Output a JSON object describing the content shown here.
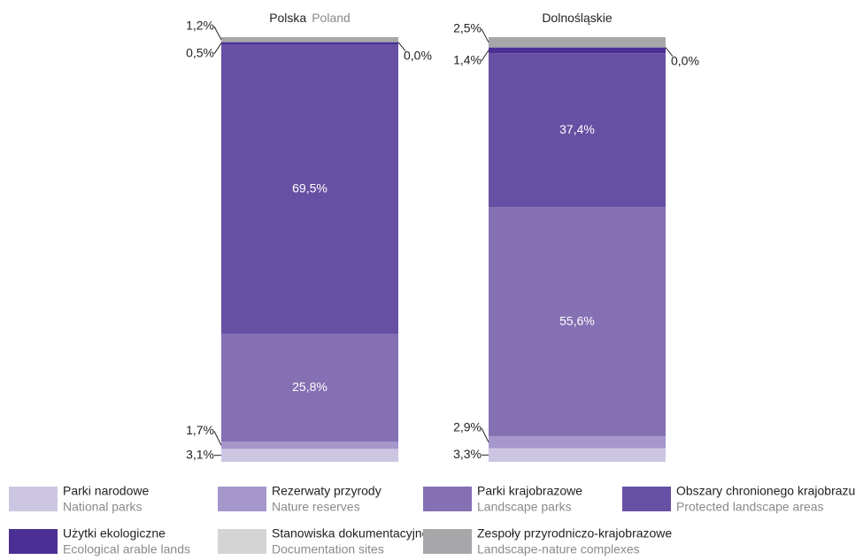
{
  "chart_data": {
    "type": "stacked_bar_100",
    "categories": [
      "Polska",
      "Dolnośląskie"
    ],
    "categories_en": [
      "Poland",
      null
    ],
    "series": [
      {
        "name": "Parki narodowe",
        "name_en": "National parks",
        "color": "#cdc6e3",
        "values": [
          3.1,
          3.3
        ],
        "value_labels": [
          "3,1%",
          "3,3%"
        ]
      },
      {
        "name": "Rezerwaty przyrody",
        "name_en": "Nature reserves",
        "color": "#a596cb",
        "values": [
          1.7,
          2.9
        ],
        "value_labels": [
          "1,7%",
          "2,9%"
        ]
      },
      {
        "name": "Parki krajobrazowe",
        "name_en": "Landscape parks",
        "color": "#8470b3",
        "values": [
          25.8,
          55.6
        ],
        "value_labels": [
          "25,8%",
          "55,6%"
        ]
      },
      {
        "name": "Obszary chronionego krajobrazu",
        "name_en": "Protected landscape areas",
        "color": "#6650a3",
        "values": [
          69.5,
          37.4
        ],
        "value_labels": [
          "69,5%",
          "37,4%"
        ]
      },
      {
        "name": "Użytki ekologiczne",
        "name_en": "Ecological arable lands",
        "color": "#4b2f94",
        "values": [
          0.5,
          1.4
        ],
        "value_labels": [
          "0,5%",
          "1,4%"
        ]
      },
      {
        "name": "Stanowiska dokumentacyjne",
        "name_en": "Documentation sites",
        "color": "#d4d4d4",
        "values": [
          0.0,
          0.0
        ],
        "value_labels": [
          "0,0%",
          "0,0%"
        ]
      },
      {
        "name": "Zespoły przyrodniczo-krajobrazowe",
        "name_en": "Landscape-nature complexes",
        "color": "#a7a7a9",
        "values": [
          1.2,
          2.5
        ],
        "value_labels": [
          "1,2%",
          "2,5%"
        ]
      }
    ]
  }
}
